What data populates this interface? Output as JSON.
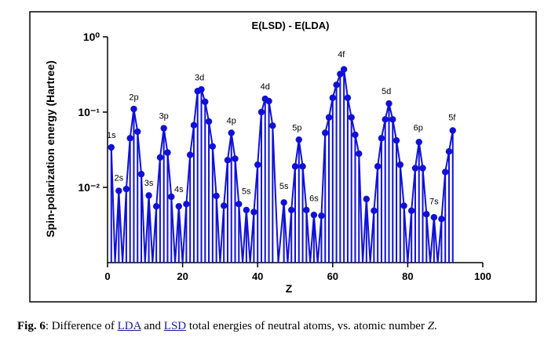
{
  "chart_data": {
    "type": "line",
    "title": "E(LSD) - E(LDA)",
    "x_label": "Z",
    "y_label": "Spin-polarization energy (Hartree)",
    "log_y": true,
    "color": "#1010d8",
    "stems": true,
    "x": [
      1,
      3,
      5,
      6,
      7,
      8,
      9,
      11,
      13,
      14,
      15,
      16,
      17,
      19,
      21,
      22,
      23,
      24,
      25,
      26,
      27,
      28,
      29,
      31,
      32,
      33,
      34,
      35,
      37,
      39,
      40,
      41,
      42,
      43,
      44,
      47,
      49,
      50,
      51,
      52,
      53,
      55,
      57,
      58,
      59,
      60,
      61,
      62,
      63,
      64,
      65,
      66,
      67,
      69,
      71,
      72,
      73,
      74,
      75,
      76,
      77,
      78,
      79,
      81,
      82,
      83,
      84,
      85,
      87,
      89,
      90,
      91,
      92
    ],
    "values": [
      0.034,
      0.009,
      0.0095,
      0.045,
      0.11,
      0.055,
      0.015,
      0.0078,
      0.0056,
      0.025,
      0.061,
      0.029,
      0.0075,
      0.0056,
      0.006,
      0.027,
      0.067,
      0.19,
      0.2,
      0.137,
      0.075,
      0.035,
      0.0077,
      0.0057,
      0.023,
      0.053,
      0.024,
      0.006,
      0.005,
      0.0047,
      0.02,
      0.1,
      0.15,
      0.14,
      0.066,
      0.0063,
      0.005,
      0.019,
      0.043,
      0.019,
      0.005,
      0.0043,
      0.0042,
      0.053,
      0.085,
      0.155,
      0.23,
      0.32,
      0.37,
      0.155,
      0.085,
      0.05,
      0.028,
      0.007,
      0.0049,
      0.019,
      0.045,
      0.08,
      0.13,
      0.08,
      0.042,
      0.02,
      0.0057,
      0.0049,
      0.018,
      0.04,
      0.018,
      0.0044,
      0.004,
      0.0038,
      0.016,
      0.03,
      0.057
    ],
    "xlim": [
      0,
      100
    ],
    "xticks": [
      0,
      20,
      40,
      60,
      80,
      100
    ],
    "ylim": [
      0.001,
      1
    ],
    "yticks": [
      {
        "value": 1,
        "label": "10⁰"
      },
      {
        "value": 0.1,
        "label": "10⁻¹"
      },
      {
        "value": 0.01,
        "label": "10⁻²"
      }
    ],
    "annotations": [
      {
        "text": "1s",
        "x": 1,
        "y": 0.05
      },
      {
        "text": "2s",
        "x": 3,
        "y": 0.0135
      },
      {
        "text": "2p",
        "x": 7,
        "y": 0.16
      },
      {
        "text": "3s",
        "x": 11,
        "y": 0.0115
      },
      {
        "text": "3p",
        "x": 15,
        "y": 0.09
      },
      {
        "text": "4s",
        "x": 19,
        "y": 0.0095
      },
      {
        "text": "3d",
        "x": 24.5,
        "y": 0.29
      },
      {
        "text": "4p",
        "x": 33,
        "y": 0.078
      },
      {
        "text": "5s",
        "x": 37,
        "y": 0.009
      },
      {
        "text": "4d",
        "x": 42,
        "y": 0.22
      },
      {
        "text": "5s",
        "x": 47,
        "y": 0.0105
      },
      {
        "text": "5p",
        "x": 50.5,
        "y": 0.063
      },
      {
        "text": "6s",
        "x": 55,
        "y": 0.0072
      },
      {
        "text": "4f",
        "x": 62.3,
        "y": 0.59
      },
      {
        "text": "5d",
        "x": 74.3,
        "y": 0.19
      },
      {
        "text": "6p",
        "x": 82.8,
        "y": 0.063
      },
      {
        "text": "7s",
        "x": 87,
        "y": 0.0066
      },
      {
        "text": "5f",
        "x": 91.8,
        "y": 0.086
      }
    ]
  },
  "caption": [
    "Fig. 6",
    ": Difference of ",
    "LDA",
    " and ",
    "LSD",
    " total energies of neutral atoms, vs. atomic number ",
    "Z",
    "."
  ]
}
